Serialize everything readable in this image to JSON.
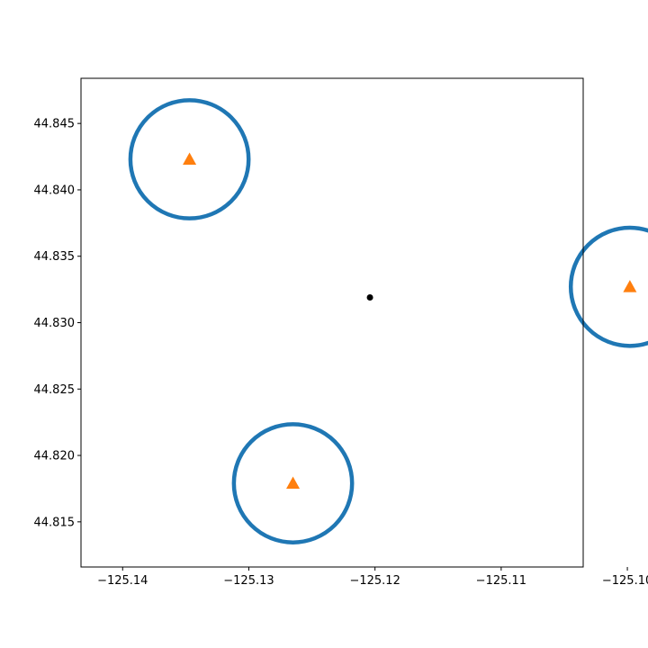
{
  "chart_data": {
    "type": "scatter",
    "title": "",
    "xlabel": "",
    "ylabel": "",
    "xlim": [
      -125.1433,
      -125.1035
    ],
    "ylim": [
      44.8116,
      44.8484
    ],
    "grid": false,
    "legend": "none",
    "x_ticks": [
      "−125.14",
      "−125.13",
      "−125.12",
      "−125.11",
      "−125.10"
    ],
    "x_tick_values": [
      -125.14,
      -125.13,
      -125.12,
      -125.11,
      -125.1
    ],
    "y_ticks": [
      "44.815",
      "44.820",
      "44.825",
      "44.830",
      "44.835",
      "44.840",
      "44.845"
    ],
    "y_tick_values": [
      44.815,
      44.82,
      44.825,
      44.83,
      44.835,
      44.84,
      44.845
    ],
    "center_point": {
      "x": -125.1204,
      "y": 44.8319,
      "color": "#000000"
    },
    "triangles": {
      "color": "#ff7f0e",
      "points": [
        {
          "x": -125.1347,
          "y": 44.8423
        },
        {
          "x": -125.0998,
          "y": 44.8327
        },
        {
          "x": -125.1265,
          "y": 44.8179
        }
      ]
    },
    "circles": {
      "color": "#1f77b4",
      "radius_y": 0.00445,
      "items": [
        {
          "cx": -125.1347,
          "cy": 44.8423
        },
        {
          "cx": -125.0998,
          "cy": 44.8327
        },
        {
          "cx": -125.1265,
          "cy": 44.8179
        }
      ]
    }
  }
}
